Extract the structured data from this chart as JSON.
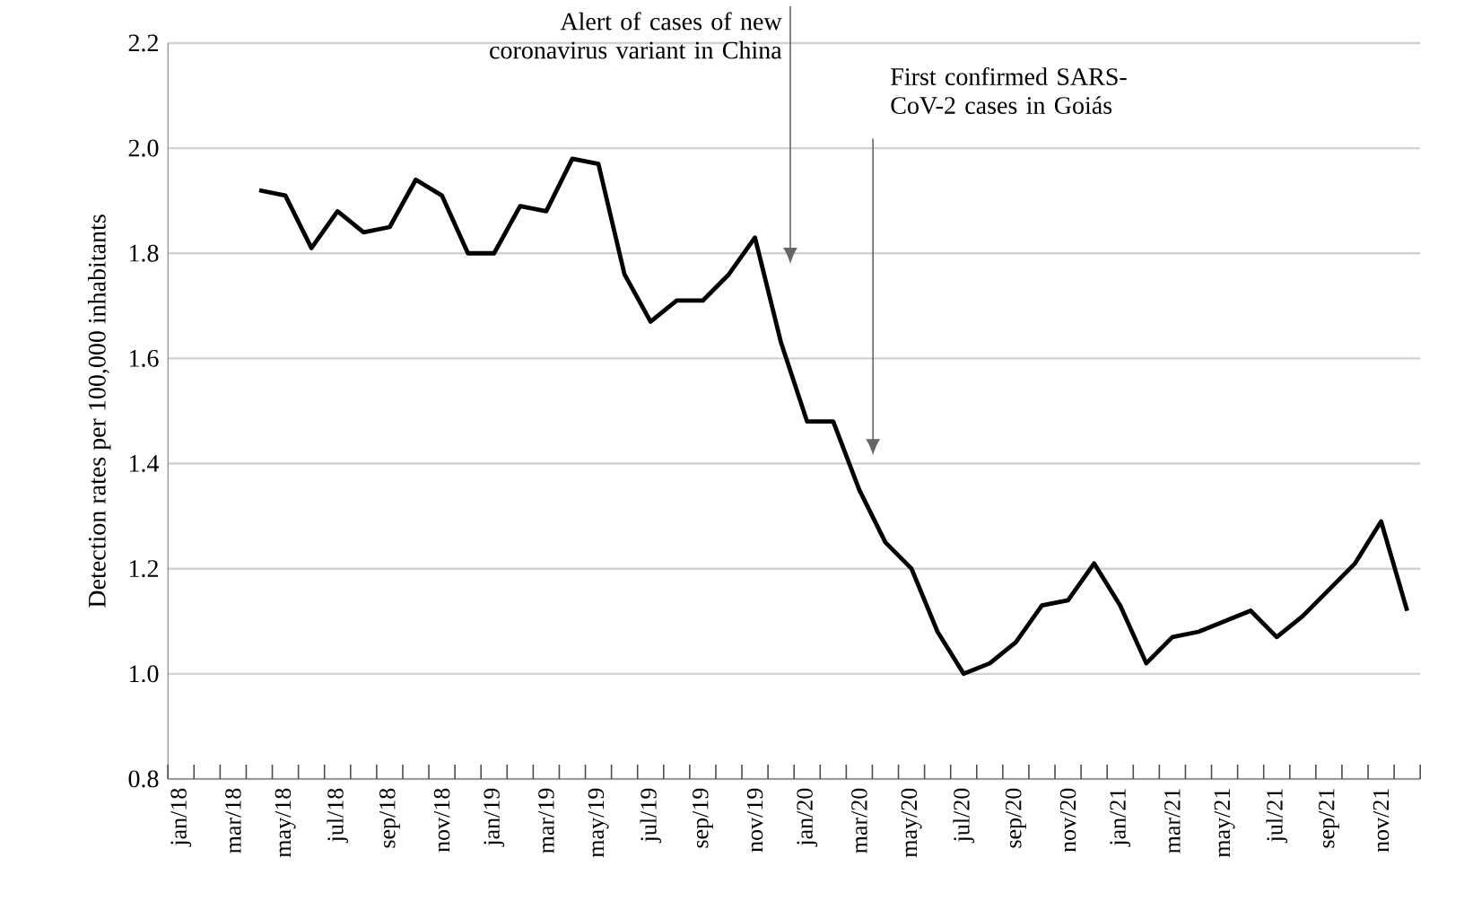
{
  "chart_data": {
    "type": "line",
    "ylabel": "Detection rates per 100,000 inhabitants",
    "categories": [
      "jan/18",
      null,
      "mar/18",
      null,
      "may/18",
      null,
      "jul/18",
      null,
      "sep/18",
      null,
      "nov/18",
      null,
      "jan/19",
      null,
      "mar/19",
      null,
      "may/19",
      null,
      "jul/19",
      null,
      "sep/19",
      null,
      "nov/19",
      null,
      "jan/20",
      null,
      "mar/20",
      null,
      "may/20",
      null,
      "jul/20",
      null,
      "sep/20",
      null,
      "nov/20",
      null,
      "jan/21",
      null,
      "mar/21",
      null,
      "may/21",
      null,
      "jul/21",
      null,
      "sep/21",
      null,
      "nov/21",
      null
    ],
    "values": [
      null,
      null,
      null,
      1.92,
      1.91,
      1.81,
      1.88,
      1.84,
      1.85,
      1.94,
      1.91,
      1.8,
      1.8,
      1.89,
      1.88,
      1.98,
      1.97,
      1.76,
      1.67,
      1.71,
      1.71,
      1.76,
      1.83,
      1.63,
      1.48,
      1.48,
      1.35,
      1.25,
      1.2,
      1.08,
      1.0,
      1.02,
      1.06,
      1.13,
      1.14,
      1.21,
      1.13,
      1.02,
      1.07,
      1.08,
      1.1,
      1.12,
      1.07,
      1.11,
      1.16,
      1.21,
      1.29,
      1.12
    ],
    "color": "#000000",
    "line_style": "solid",
    "ylim": [
      0.8,
      2.2
    ],
    "yticks": [
      0.8,
      {
        "value": 1.0,
        "label": "1.0"
      },
      1.2,
      1.4,
      1.6,
      1.8,
      {
        "value": 2.0,
        "label": "2.0"
      },
      2.2
    ],
    "grid": "y",
    "annotations": [
      "Alert of cases of new coronavirus variant in China",
      "First confirmed SARS-CoV-2 cases in Goiás"
    ]
  }
}
